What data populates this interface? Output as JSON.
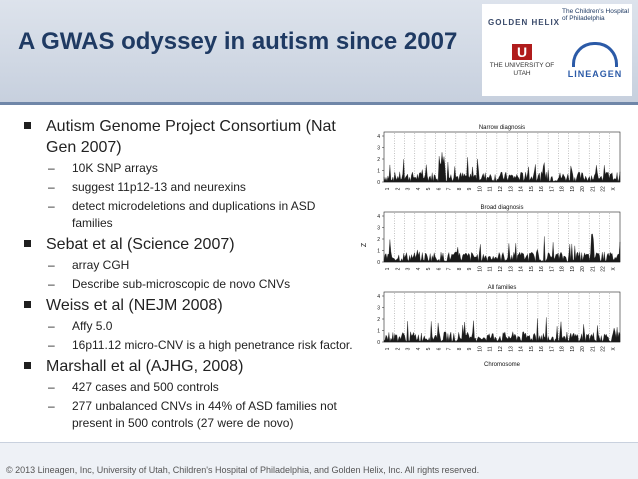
{
  "slide": {
    "title": "A GWAS odyssey in autism since 2007",
    "footer": "© 2013 Lineagen, Inc, University of Utah, Children's Hospital of Philadelphia, and Golden Helix, Inc. All rights reserved."
  },
  "logos": {
    "golden_helix": "GOLDEN HELIX",
    "chop": "The Children's Hospital of Philadelphia",
    "utah": "THE UNIVERSITY OF UTAH",
    "lineagen": "LINEAGEN"
  },
  "bullets": [
    {
      "text": "Autism Genome Project Consortium (Nat Gen 2007)",
      "subs": [
        "10K SNP arrays",
        "suggest 11p12-13 and neurexins",
        "detect microdeletions and duplications in ASD families"
      ]
    },
    {
      "text": "Sebat et al (Science 2007)",
      "subs": [
        "array CGH",
        "Describe sub-microscopic de novo CNVs"
      ]
    },
    {
      "text": "Weiss et al (NEJM 2008)",
      "subs": [
        "Affy 5.0",
        "16p11.12 micro-CNV is a high penetrance risk factor."
      ]
    },
    {
      "text": "Marshall et al (AJHG, 2008)",
      "subs": [
        "427 cases and 500 controls",
        "277 unbalanced CNVs in 44% of ASD families not present in 500 controls (27 were de novo)"
      ]
    }
  ],
  "figure": {
    "panels": [
      "Narrow diagnosis",
      "Broad diagnosis",
      "All families"
    ],
    "ylabel": "Z",
    "xlabel": "Chromosome",
    "yticks": [
      "0",
      "1",
      "2",
      "3",
      "4"
    ],
    "chromosomes": [
      "1",
      "2",
      "3",
      "4",
      "5",
      "6",
      "7",
      "8",
      "9",
      "10",
      "11",
      "12",
      "13",
      "14",
      "15",
      "16",
      "17",
      "18",
      "19",
      "20",
      "21",
      "22",
      "X"
    ]
  }
}
